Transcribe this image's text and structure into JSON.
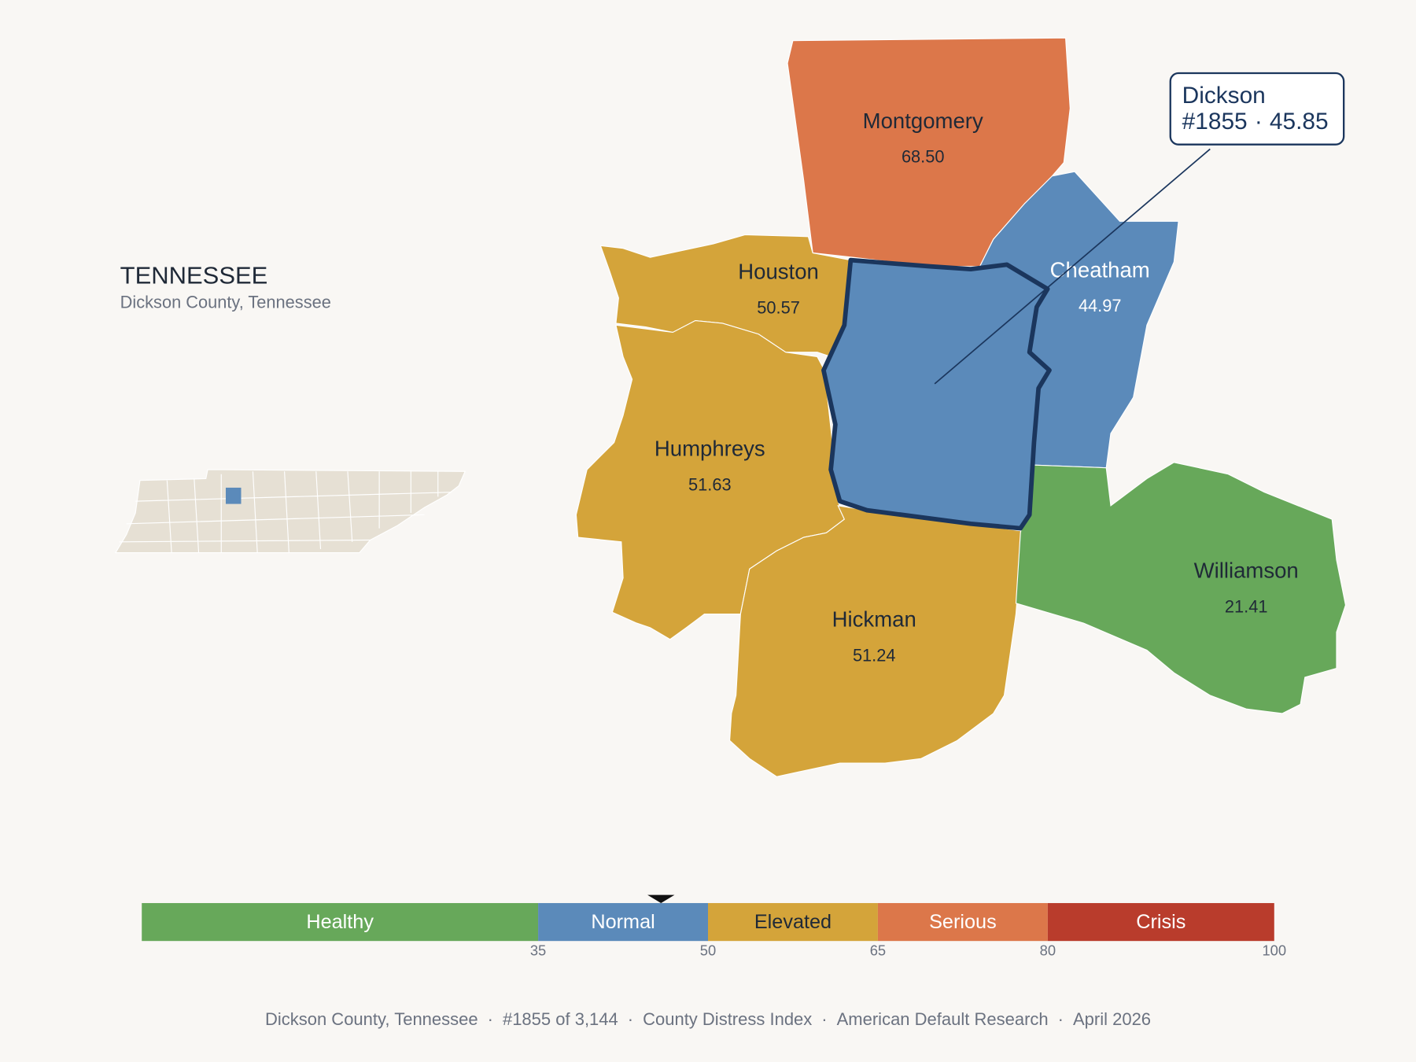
{
  "header": {
    "title": "TENNESSEE",
    "subtitle": "Dickson County, Tennessee"
  },
  "separator": "·",
  "map": {
    "counties": [
      {
        "name": "Montgomery",
        "score": {
          "value": 68.5,
          "label": "68.50"
        }
      },
      {
        "name": "Houston",
        "score": {
          "value": 50.57,
          "label": "50.57"
        }
      },
      {
        "name": "Humphreys",
        "score": {
          "value": 51.63,
          "label": "51.63"
        }
      },
      {
        "name": "Cheatham",
        "score": {
          "value": 44.97,
          "label": "44.97"
        }
      },
      {
        "name": "Hickman",
        "score": {
          "value": 51.24,
          "label": "51.24"
        }
      },
      {
        "name": "Williamson",
        "score": {
          "value": 21.41,
          "label": "21.41"
        }
      }
    ]
  },
  "callout": {
    "name": "Dickson",
    "rank": "#1855",
    "score": 45.85
  },
  "legend": {
    "range": [
      0,
      100
    ],
    "ticks": [
      35,
      50,
      65,
      80,
      100
    ],
    "bands": [
      {
        "label": "Healthy",
        "color": "#67a85a"
      },
      {
        "label": "Normal",
        "color": "#5b8aba"
      },
      {
        "label": "Elevated",
        "color": "#d4a43a"
      },
      {
        "label": "Serious",
        "color": "#dc774a"
      },
      {
        "label": "Crisis",
        "color": "#b93c2c"
      }
    ]
  },
  "footer": {
    "items": [
      "Dickson County, Tennessee",
      "#1855 of 3,144",
      "County Distress Index",
      "American Default Research",
      "April 2026"
    ]
  }
}
